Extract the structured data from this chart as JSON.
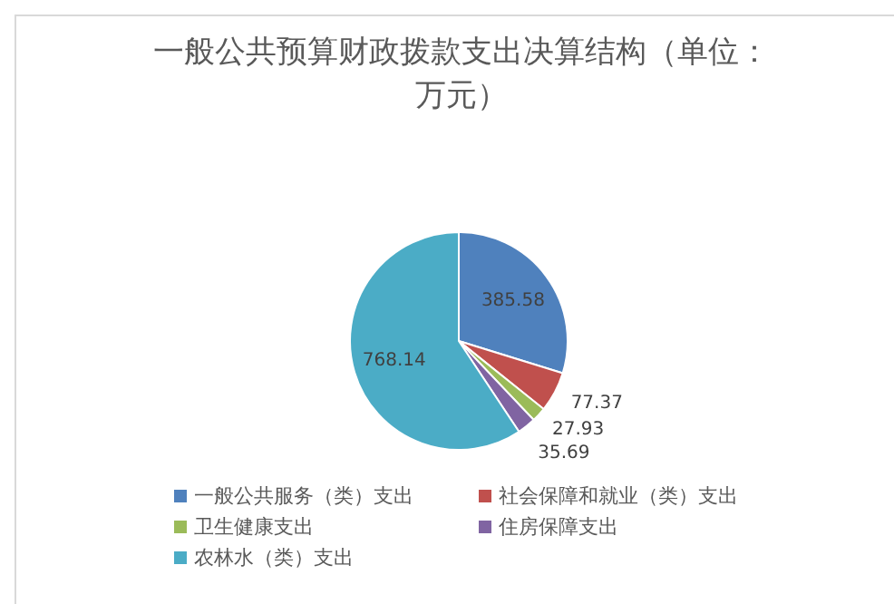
{
  "chart_data": {
    "type": "pie",
    "title": "一般公共预算财政拨款支出决算结构（单位：万元）",
    "categories": [
      "一般公共服务（类）支出",
      "社会保障和就业（类）支出",
      "卫生健康支出",
      "住房保障支出",
      "农林水（类）支出"
    ],
    "values": [
      385.58,
      77.37,
      27.93,
      35.69,
      768.14
    ],
    "colors": [
      "#4f81bd",
      "#c0504d",
      "#9bbb59",
      "#8064a2",
      "#4bacc6"
    ],
    "data_labels": true,
    "legend": "bottom"
  }
}
